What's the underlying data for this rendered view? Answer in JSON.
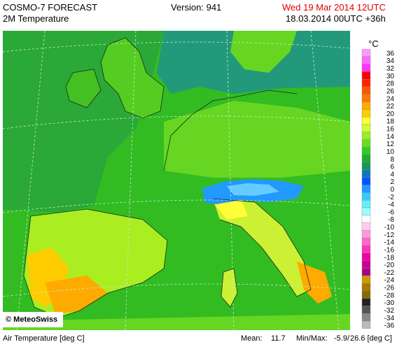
{
  "header": {
    "model": "COSMO-7 FORECAST",
    "product": "2M Temperature",
    "version": "Version: 941",
    "valid_time": "Wed 19 Mar 2014 12UTC",
    "run_time": "18.03.2014 00UTC +36h",
    "valid_time_color": "#e00000"
  },
  "legend": {
    "unit": "°C",
    "labels": [
      "36",
      "34",
      "32",
      "30",
      "28",
      "26",
      "24",
      "22",
      "20",
      "18",
      "16",
      "14",
      "12",
      "10",
      "8",
      "6",
      "4",
      "2",
      "0",
      "-2",
      "-4",
      "-6",
      "-8",
      "-10",
      "-12",
      "-14",
      "-16",
      "-18",
      "-20",
      "-22",
      "-24",
      "-26",
      "-28",
      "-30",
      "-32",
      "-34",
      "-36"
    ],
    "colors": [
      "#ff99ff",
      "#ff66ff",
      "#ff33ff",
      "#ff0000",
      "#ff2200",
      "#ff5500",
      "#ff7700",
      "#ffaa00",
      "#ffcc00",
      "#ffff33",
      "#ccff33",
      "#99ee22",
      "#66dd22",
      "#33cc22",
      "#22aa33",
      "#119955",
      "#1177bb",
      "#0055ff",
      "#2299ff",
      "#33ccff",
      "#66eeff",
      "#99ffff",
      "#ffffff",
      "#ffccee",
      "#ff99dd",
      "#ff66cc",
      "#ff33bb",
      "#ee00aa",
      "#cc0099",
      "#aa0088",
      "#cc9900",
      "#aa7700",
      "#886600",
      "#222222",
      "#555555",
      "#888888",
      "#bbbbbb"
    ]
  },
  "footer": {
    "variable": "Air Temperature [deg C]",
    "mean_label": "Mean:",
    "mean_value": "11.7",
    "minmax_label": "Min/Max:",
    "min_value": "-5.9/",
    "max_value": "26.6 [deg C]"
  },
  "credit": "© MeteoSwiss"
}
